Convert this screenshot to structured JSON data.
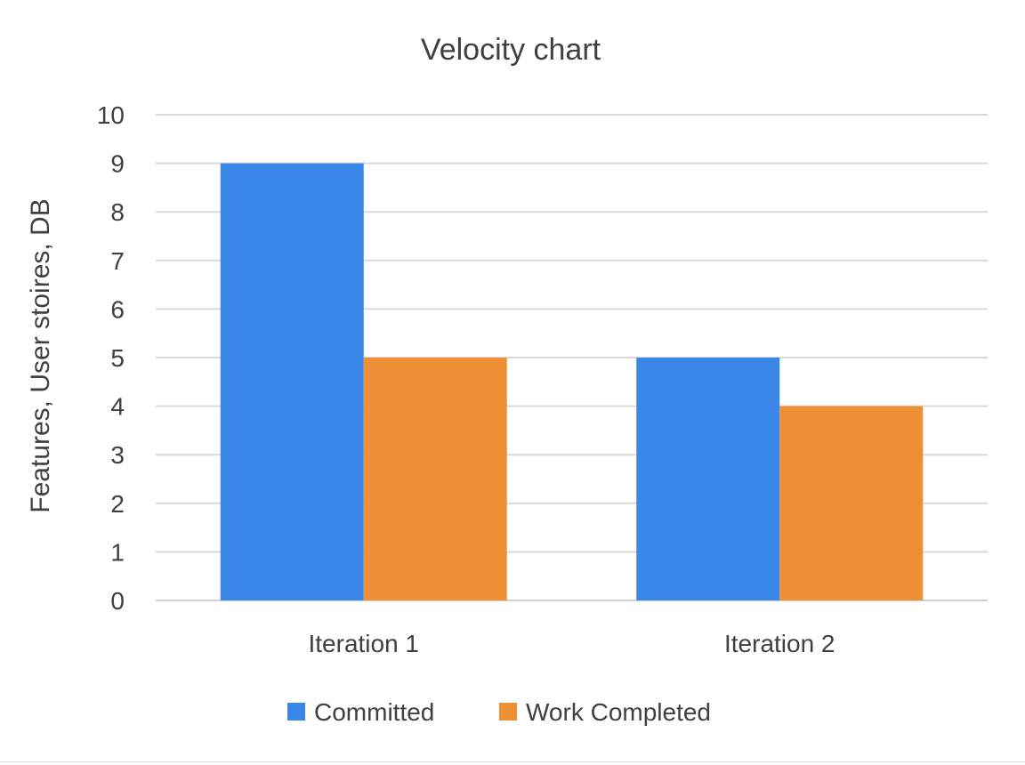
{
  "chart_data": {
    "type": "bar",
    "title": "Velocity chart",
    "xlabel": "",
    "ylabel": "Features, User stoires, DB",
    "categories": [
      "Iteration 1",
      "Iteration 2"
    ],
    "series": [
      {
        "name": "Committed",
        "values": [
          9,
          5
        ],
        "color": "#3b87e8"
      },
      {
        "name": "Work Completed",
        "values": [
          5,
          4
        ],
        "color": "#ef8f35"
      }
    ],
    "ylim": [
      0,
      10
    ],
    "yticks": [
      "0",
      "1",
      "2",
      "3",
      "4",
      "5",
      "6",
      "7",
      "8",
      "9",
      "10"
    ],
    "grid": true,
    "legend_position": "bottom"
  }
}
